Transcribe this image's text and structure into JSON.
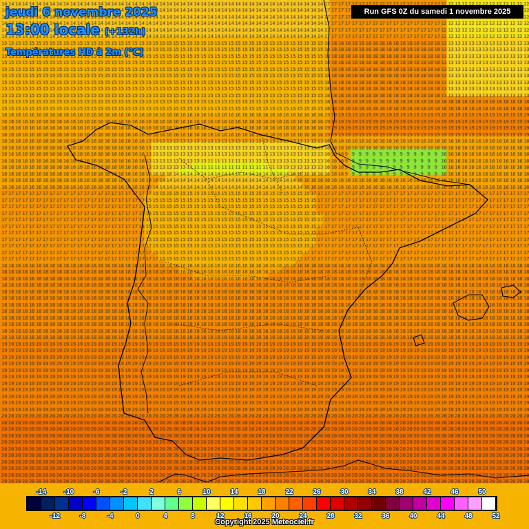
{
  "header": {
    "date_line": "jeudi 6 novembre 2025",
    "time_line": "13:00 locale",
    "lead_time": "(+132h)",
    "parameter": "Températures HD à 2m (°C)",
    "run_info": "Run GFS 0Z du samedi 1 novembre 2025"
  },
  "footer": {
    "copyright": "Copyright 2025 Meteociel.fr"
  },
  "legend": {
    "labels_top": [
      "-14",
      "-10",
      "-6",
      "-2",
      "2",
      "6",
      "10",
      "14",
      "18",
      "22",
      "26",
      "30",
      "34",
      "38",
      "42",
      "46",
      "50"
    ],
    "labels_bottom": [
      "-12",
      "-8",
      "-4",
      "0",
      "4",
      "8",
      "12",
      "16",
      "20",
      "24",
      "28",
      "32",
      "36",
      "40",
      "44",
      "48",
      "52"
    ],
    "colors": [
      "#00003c",
      "#002060",
      "#003090",
      "#0000c8",
      "#0000ff",
      "#0050ff",
      "#0090ff",
      "#00c8ff",
      "#40e0ff",
      "#80ffe0",
      "#60ff90",
      "#90ff40",
      "#c8ff00",
      "#ffff60",
      "#ffff00",
      "#ffe000",
      "#ffc800",
      "#ffa000",
      "#ff8000",
      "#ff6000",
      "#ff4000",
      "#ff0000",
      "#e00000",
      "#b00000",
      "#900000",
      "#700000",
      "#800040",
      "#a00070",
      "#c000a0",
      "#e000d0",
      "#ff00ff",
      "#ff60ff",
      "#ffa0ff",
      "#ffffff"
    ]
  },
  "map": {
    "region": "Iberian Peninsula",
    "palette": {
      "c9": "#8ee63a",
      "c10": "#b8ee1c",
      "c11": "#e4f014",
      "c12": "#f6e41a",
      "c13": "#f8d420",
      "c14": "#f6c41c",
      "c15": "#f6b400",
      "c16": "#f6a400",
      "c17": "#f49400",
      "c18": "#f48a00",
      "c19": "#f28000",
      "c20": "#f07000",
      "c21": "#ec6200",
      "c22": "#e85a20"
    },
    "coastline_color": "#000000",
    "value_text_color": "#2a2a2a"
  }
}
